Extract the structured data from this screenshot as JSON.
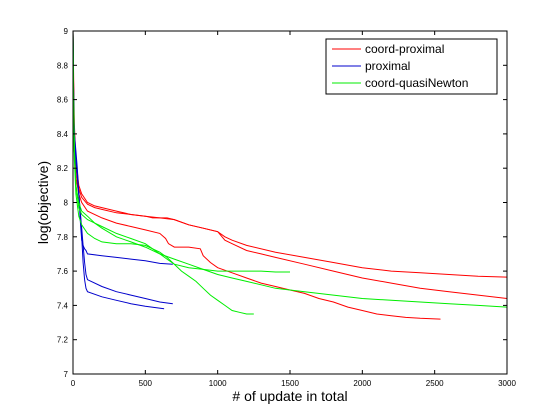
{
  "chart_data": {
    "type": "line",
    "title": "",
    "xlabel": "# of update in total",
    "ylabel": "log(objective)",
    "xlim": [
      0,
      3000
    ],
    "ylim": [
      7,
      9
    ],
    "xticks": [
      "0",
      "500",
      "1000",
      "1500",
      "2000",
      "2500",
      "3000"
    ],
    "yticks": [
      "7",
      "7.2",
      "7.4",
      "7.6",
      "7.8",
      "8",
      "8.2",
      "8.4",
      "8.6",
      "8.8",
      "9"
    ],
    "grid": false,
    "legend_position": "top-right",
    "series": [
      {
        "name": "coord-proximal",
        "color": "#ff0000",
        "runs": [
          {
            "x": [
              0,
              5,
              10,
              20,
              40,
              60,
              100,
              150,
              200,
              300,
              400,
              500,
              600,
              650,
              700,
              800,
              900,
              1000,
              1050,
              1100,
              1200,
              1400,
              1600,
              1800,
              2000,
              2200,
              2400,
              2600,
              2800,
              3000
            ],
            "y": [
              9.0,
              8.7,
              8.45,
              8.25,
              8.1,
              8.05,
              8.0,
              7.98,
              7.97,
              7.95,
              7.93,
              7.92,
              7.91,
              7.91,
              7.9,
              7.87,
              7.85,
              7.83,
              7.8,
              7.78,
              7.75,
              7.71,
              7.68,
              7.65,
              7.62,
              7.6,
              7.59,
              7.58,
              7.57,
              7.565
            ]
          },
          {
            "x": [
              0,
              5,
              10,
              20,
              40,
              60,
              100,
              150,
              200,
              300,
              400,
              500,
              550,
              600,
              700,
              800,
              900,
              1000,
              1050,
              1100,
              1200,
              1300,
              1400,
              1600,
              1800,
              2000,
              2200,
              2400,
              2600,
              2800,
              3000
            ],
            "y": [
              9.0,
              8.6,
              8.35,
              8.2,
              8.08,
              8.03,
              7.99,
              7.97,
              7.96,
              7.94,
              7.93,
              7.92,
              7.91,
              7.91,
              7.9,
              7.87,
              7.85,
              7.83,
              7.78,
              7.76,
              7.72,
              7.7,
              7.68,
              7.64,
              7.6,
              7.56,
              7.53,
              7.5,
              7.48,
              7.46,
              7.44
            ]
          },
          {
            "x": [
              0,
              5,
              10,
              20,
              40,
              60,
              100,
              200,
              300,
              400,
              500,
              600,
              640,
              660,
              700,
              800,
              880,
              900,
              950,
              1000,
              1100,
              1200,
              1300,
              1400,
              1500,
              1600,
              1700,
              1800,
              1900,
              2000,
              2100,
              2200,
              2300,
              2400,
              2540
            ],
            "y": [
              9.0,
              8.6,
              8.3,
              8.15,
              8.05,
              8.0,
              7.95,
              7.91,
              7.88,
              7.86,
              7.84,
              7.82,
              7.79,
              7.76,
              7.74,
              7.74,
              7.73,
              7.69,
              7.65,
              7.62,
              7.59,
              7.56,
              7.53,
              7.51,
              7.49,
              7.47,
              7.44,
              7.42,
              7.39,
              7.37,
              7.35,
              7.34,
              7.33,
              7.325,
              7.32
            ]
          }
        ]
      },
      {
        "name": "proximal",
        "color": "#0000cc",
        "runs": [
          {
            "x": [
              0,
              5,
              10,
              20,
              30,
              40,
              50,
              60,
              70,
              80,
              90,
              100,
              200,
              300,
              400,
              500,
              600,
              690
            ],
            "y": [
              9.0,
              8.6,
              8.4,
              8.3,
              8.2,
              8.05,
              7.9,
              7.78,
              7.75,
              7.73,
              7.72,
              7.7,
              7.69,
              7.68,
              7.67,
              7.66,
              7.645,
              7.64
            ]
          },
          {
            "x": [
              0,
              5,
              10,
              20,
              30,
              40,
              50,
              60,
              70,
              80,
              90,
              100,
              200,
              300,
              400,
              500,
              600,
              690
            ],
            "y": [
              9.0,
              8.55,
              8.35,
              8.25,
              8.15,
              8.05,
              7.95,
              7.85,
              7.75,
              7.65,
              7.58,
              7.55,
              7.51,
              7.48,
              7.46,
              7.44,
              7.42,
              7.41
            ]
          },
          {
            "x": [
              0,
              5,
              10,
              20,
              30,
              40,
              50,
              60,
              70,
              80,
              90,
              100,
              200,
              300,
              400,
              500,
              630
            ],
            "y": [
              9.0,
              8.55,
              8.35,
              8.25,
              8.15,
              8.05,
              7.95,
              7.8,
              7.65,
              7.55,
              7.5,
              7.48,
              7.45,
              7.43,
              7.41,
              7.395,
              7.38
            ]
          }
        ]
      },
      {
        "name": "coord-quasiNewton",
        "color": "#00ee00",
        "runs": [
          {
            "x": [
              0,
              5,
              10,
              20,
              40,
              60,
              100,
              150,
              200,
              300,
              400,
              500,
              600,
              700,
              800,
              900,
              1000,
              1100,
              1200,
              1300,
              1400,
              1500,
              1600,
              1800,
              2000,
              2200,
              2400,
              2600,
              2800,
              3000
            ],
            "y": [
              9.0,
              8.5,
              8.3,
              8.1,
              8.0,
              7.95,
              7.92,
              7.88,
              7.85,
              7.8,
              7.77,
              7.74,
              7.7,
              7.67,
              7.64,
              7.61,
              7.58,
              7.56,
              7.54,
              7.52,
              7.5,
              7.49,
              7.48,
              7.46,
              7.44,
              7.43,
              7.42,
              7.41,
              7.4,
              7.39
            ]
          },
          {
            "x": [
              0,
              5,
              10,
              20,
              40,
              60,
              100,
              150,
              200,
              300,
              400,
              500,
              550,
              600,
              650,
              700,
              800,
              900,
              1000,
              1100,
              1200,
              1300,
              1400,
              1500
            ],
            "y": [
              9.0,
              8.5,
              8.25,
              8.05,
              7.92,
              7.87,
              7.82,
              7.79,
              7.77,
              7.76,
              7.76,
              7.75,
              7.73,
              7.7,
              7.67,
              7.64,
              7.62,
              7.61,
              7.6,
              7.6,
              7.6,
              7.6,
              7.595,
              7.595
            ]
          },
          {
            "x": [
              0,
              5,
              10,
              20,
              40,
              60,
              100,
              150,
              200,
              300,
              400,
              500,
              550,
              600,
              650,
              700,
              750,
              800,
              850,
              900,
              950,
              1000,
              1050,
              1100,
              1150,
              1200,
              1250
            ],
            "y": [
              9.0,
              8.55,
              8.3,
              8.1,
              7.97,
              7.93,
              7.9,
              7.88,
              7.86,
              7.82,
              7.79,
              7.76,
              7.73,
              7.71,
              7.68,
              7.64,
              7.6,
              7.57,
              7.54,
              7.5,
              7.46,
              7.43,
              7.4,
              7.37,
              7.36,
              7.35,
              7.35
            ]
          }
        ]
      }
    ]
  }
}
